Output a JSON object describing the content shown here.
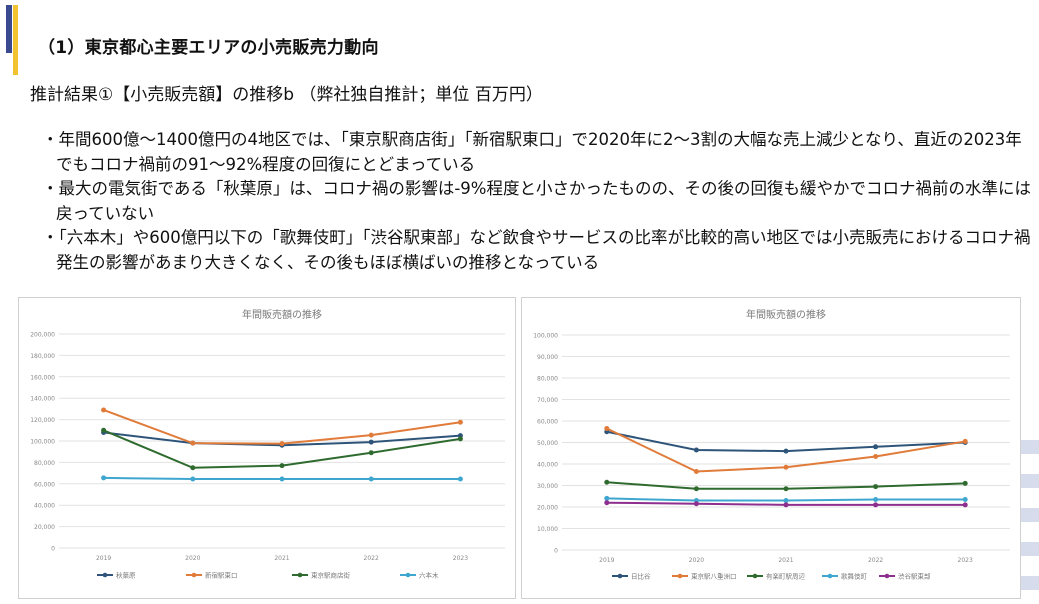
{
  "header": {
    "section_title": "（1）東京都心主要エリアの小売販売力動向",
    "subtitle": "推計結果①【小売販売額】の推移b （弊社独自推計；単位 百万円）"
  },
  "bullets": [
    "・年間600億～1400億円の4地区では、「東京駅商店街」「新宿駅東口」で2020年に2～3割の大幅な売上減少となり、直近の2023年でもコロナ禍前の91～92%程度の回復にとどまっている",
    "・最大の電気街である「秋葉原」は、コロナ禍の影響は-9%程度と小さかったものの、その後の回復も緩やかでコロナ禍前の水準には戻っていない",
    "・「六本木」や600億円以下の「歌舞伎町」「渋谷駅東部」など飲食やサービスの比率が比較的高い地区では小売販売におけるコロナ禍発生の影響があまり大きくなく、その後もほぼ横ばいの推移となっている"
  ],
  "colors": {
    "accent_blue": "#3b4a8f",
    "accent_yellow": "#f2c230"
  },
  "chart_data": [
    {
      "type": "line",
      "title": "年間販売額の推移",
      "categories": [
        "2019",
        "2020",
        "2021",
        "2022",
        "2023"
      ],
      "ylim": [
        0,
        200000
      ],
      "yticks": [
        "0",
        "20,000",
        "40,000",
        "60,000",
        "80,000",
        "100,000",
        "120,000",
        "140,000",
        "160,000",
        "180,000",
        "200,000"
      ],
      "grid": true,
      "legend": "bottom",
      "series": [
        {
          "name": "秋葉原",
          "color": "#2e5579",
          "values": [
            108000,
            98000,
            96000,
            99000,
            105000
          ]
        },
        {
          "name": "新宿駅東口",
          "color": "#e07b39",
          "values": [
            129000,
            98000,
            97500,
            105500,
            117500
          ]
        },
        {
          "name": "東京駅商店街",
          "color": "#2f6b2f",
          "values": [
            110000,
            75000,
            77000,
            89000,
            102000
          ]
        },
        {
          "name": "六本木",
          "color": "#3fa7cf",
          "values": [
            65500,
            64500,
            64500,
            64500,
            64500
          ]
        }
      ]
    },
    {
      "type": "line",
      "title": "年間販売額の推移",
      "categories": [
        "2019",
        "2020",
        "2021",
        "2022",
        "2023"
      ],
      "ylim": [
        0,
        100000
      ],
      "yticks": [
        "0",
        "10,000",
        "20,000",
        "30,000",
        "40,000",
        "50,000",
        "60,000",
        "70,000",
        "80,000",
        "90,000",
        "100,000"
      ],
      "grid": true,
      "legend": "bottom",
      "series": [
        {
          "name": "日比谷",
          "color": "#2e5579",
          "values": [
            55000,
            46500,
            46000,
            48000,
            50000
          ]
        },
        {
          "name": "東京駅八重洲口",
          "color": "#e07b39",
          "values": [
            56500,
            36500,
            38500,
            43500,
            50500
          ]
        },
        {
          "name": "有楽町駅周辺",
          "color": "#2f6b2f",
          "values": [
            31500,
            28500,
            28500,
            29500,
            31000
          ]
        },
        {
          "name": "歌舞伎町",
          "color": "#3fa7cf",
          "values": [
            24000,
            23000,
            23000,
            23500,
            23500
          ]
        },
        {
          "name": "渋谷駅東部",
          "color": "#8e2e8e",
          "values": [
            22000,
            21500,
            21000,
            21000,
            21000
          ]
        }
      ]
    }
  ]
}
